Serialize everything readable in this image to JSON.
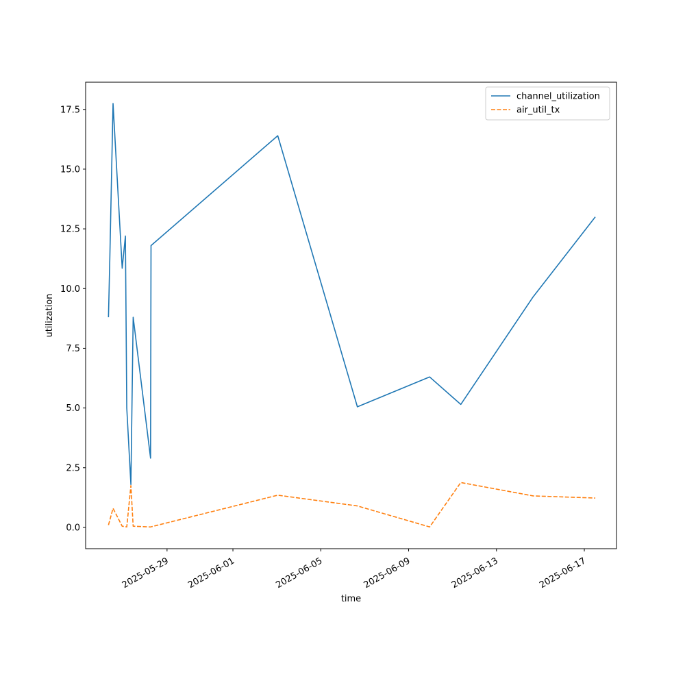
{
  "chart_data": {
    "type": "line",
    "xlabel": "time",
    "ylabel": "utilization",
    "x_axis_type": "date",
    "xlim": [
      "2025-05-25T07:02",
      "2025-06-18T11:10"
    ],
    "ylim": [
      -0.89,
      18.64
    ],
    "x_ticks": [
      "2025-05-29",
      "2025-06-01",
      "2025-06-05",
      "2025-06-09",
      "2025-06-13",
      "2025-06-17"
    ],
    "y_ticks": [
      0.0,
      2.5,
      5.0,
      7.5,
      10.0,
      12.5,
      15.0,
      17.5
    ],
    "y_tick_labels": [
      "0.0",
      "2.5",
      "5.0",
      "7.5",
      "10.0",
      "12.5",
      "15.0",
      "17.5"
    ],
    "grid": false,
    "legend_position": "top-right",
    "series": [
      {
        "name": "channel_utilization",
        "color": "#1f77b4",
        "style": "solid",
        "points": [
          [
            "2025-05-26T08:00",
            8.8
          ],
          [
            "2025-05-26T09:30",
            11.3
          ],
          [
            "2025-05-26T13:00",
            17.75
          ],
          [
            "2025-05-26T23:00",
            10.85
          ],
          [
            "2025-05-27T02:30",
            12.2
          ],
          [
            "2025-05-27T04:00",
            5.0
          ],
          [
            "2025-05-27T08:30",
            1.8
          ],
          [
            "2025-05-27T11:00",
            8.8
          ],
          [
            "2025-05-28T06:00",
            2.9
          ],
          [
            "2025-05-28T06:30",
            11.8
          ],
          [
            "2025-06-03T01:00",
            16.4
          ],
          [
            "2025-06-06T16:00",
            5.05
          ],
          [
            "2025-06-09T23:00",
            6.3
          ],
          [
            "2025-06-11T09:00",
            5.15
          ],
          [
            "2025-06-14T16:00",
            9.65
          ],
          [
            "2025-06-17T12:00",
            13.0
          ]
        ]
      },
      {
        "name": "air_util_tx",
        "color": "#ff7f0e",
        "style": "dashed",
        "points": [
          [
            "2025-05-26T08:00",
            0.1
          ],
          [
            "2025-05-26T13:00",
            0.8
          ],
          [
            "2025-05-26T23:00",
            0.05
          ],
          [
            "2025-05-27T04:00",
            0.02
          ],
          [
            "2025-05-27T08:30",
            1.75
          ],
          [
            "2025-05-27T11:00",
            0.05
          ],
          [
            "2025-05-28T06:00",
            0.02
          ],
          [
            "2025-06-03T01:00",
            1.35
          ],
          [
            "2025-06-06T16:00",
            0.9
          ],
          [
            "2025-06-09T23:00",
            0.02
          ],
          [
            "2025-06-11T09:00",
            1.88
          ],
          [
            "2025-06-14T16:00",
            1.32
          ],
          [
            "2025-06-17T12:00",
            1.23
          ]
        ]
      }
    ]
  }
}
